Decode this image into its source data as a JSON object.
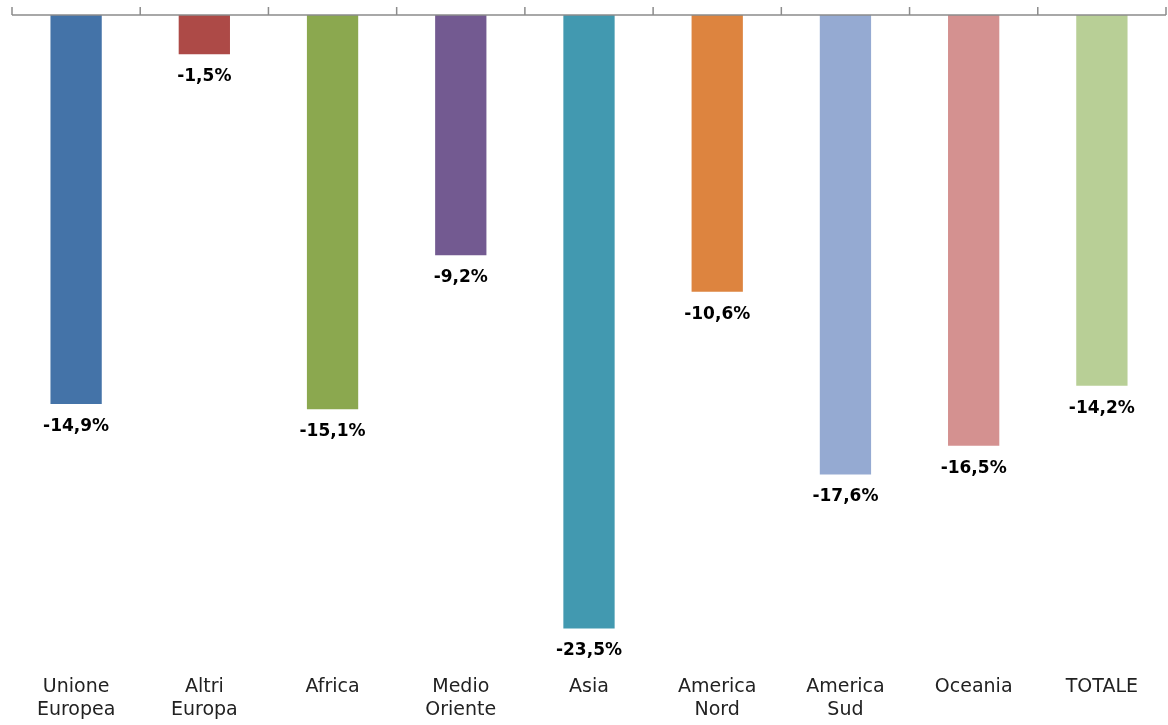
{
  "chart_data": {
    "type": "bar",
    "categories": [
      "Unione Europea",
      "Altri Europa",
      "Africa",
      "Medio Oriente",
      "Asia",
      "America Nord",
      "America Sud",
      "Oceania",
      "TOTALE"
    ],
    "values": [
      -14.9,
      -1.5,
      -15.1,
      -9.2,
      -23.5,
      -10.6,
      -17.6,
      -16.5,
      -14.2
    ],
    "colors": [
      "#4473a8",
      "#ad4a47",
      "#8ba84f",
      "#735a91",
      "#4299b0",
      "#dd843f",
      "#95aad2",
      "#d49190",
      "#b8cf96"
    ],
    "value_labels": [
      "-14,9%",
      "-1,5%",
      "-15,1%",
      "-9,2%",
      "-23,5%",
      "-10,6%",
      "-17,6%",
      "-16,5%",
      "-14,2%"
    ],
    "grid": false,
    "legend": false
  }
}
